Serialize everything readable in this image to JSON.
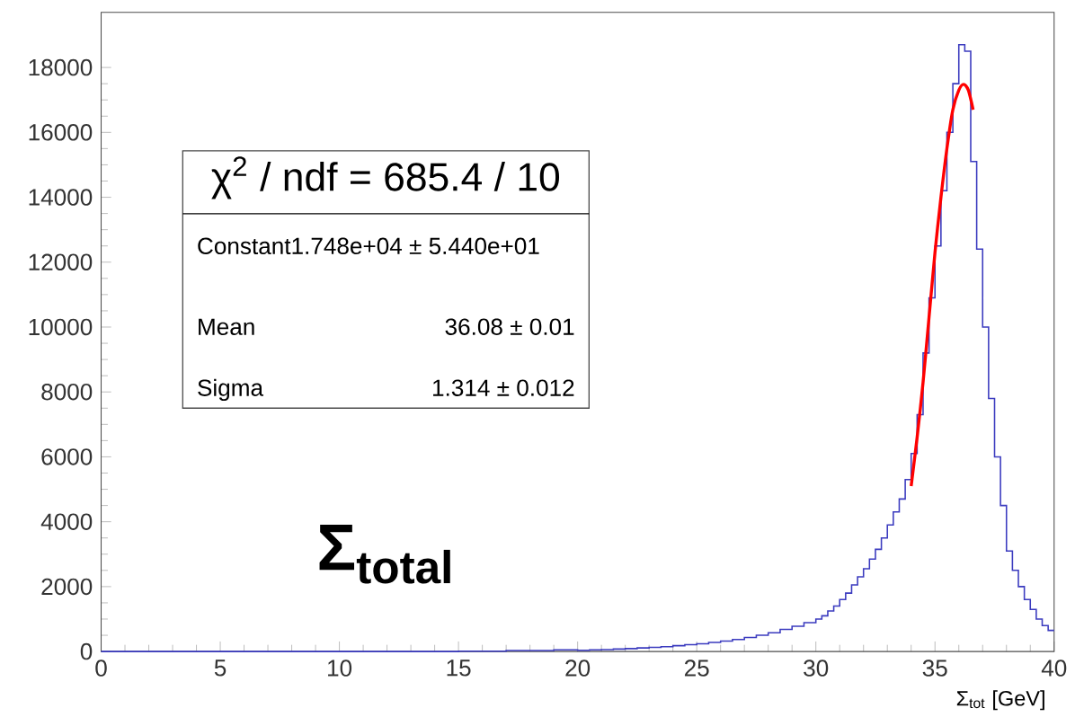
{
  "chart_data": {
    "type": "histogram",
    "xlabel": "Σ$_{tot}$ [GeV]",
    "color": "#3b3bbf",
    "bins": [
      0,
      15,
      17,
      19,
      20,
      20.5,
      21,
      21.5,
      22,
      22.5,
      23,
      23.5,
      24,
      24.5,
      25,
      25.5,
      26,
      26.5,
      27,
      27.5,
      28,
      28.5,
      29,
      29.5,
      30,
      30.25,
      30.5,
      30.75,
      31,
      31.25,
      31.5,
      31.75,
      32,
      32.25,
      32.5,
      32.75,
      33,
      33.25,
      33.5,
      33.75,
      34,
      34.25,
      34.5,
      34.75,
      35,
      35.25,
      35.5,
      35.75,
      36,
      36.25,
      36.5,
      36.75,
      37,
      37.25,
      37.5,
      37.75,
      38,
      38.25,
      38.5,
      38.75,
      39,
      39.25,
      39.5,
      39.75,
      40
    ],
    "values": [
      0,
      10,
      30,
      50,
      40,
      50,
      60,
      75,
      90,
      110,
      130,
      150,
      180,
      210,
      240,
      280,
      320,
      370,
      430,
      500,
      580,
      680,
      780,
      890,
      1000,
      1100,
      1250,
      1400,
      1600,
      1800,
      2050,
      2300,
      2550,
      2850,
      3150,
      3500,
      3900,
      4300,
      4700,
      5300,
      6100,
      7300,
      9200,
      10900,
      12500,
      14200,
      16000,
      17500,
      18700,
      18500,
      15100,
      12400,
      10000,
      7800,
      6000,
      4500,
      3100,
      2500,
      2000,
      1600,
      1300,
      1000,
      800,
      650
    ],
    "series": [
      {
        "type": "line",
        "color": "#ff0000",
        "x": [
          34,
          34.25,
          34.5,
          34.75,
          35,
          35.25,
          35.5,
          35.75,
          36,
          36.2,
          36.4,
          36.6
        ],
        "values": [
          5100,
          6600,
          8300,
          10300,
          12300,
          14000,
          15500,
          16700,
          17300,
          17480,
          17300,
          16700
        ]
      }
    ],
    "xlim": [
      0,
      40
    ],
    "ylim": [
      0,
      19700
    ],
    "xticks": [
      0,
      5,
      10,
      15,
      20,
      25,
      30,
      35,
      40
    ],
    "yticks": [
      0,
      2000,
      4000,
      6000,
      8000,
      10000,
      12000,
      14000,
      16000,
      18000
    ],
    "annotations": [
      "χ$^{2}$ / ndf = 685.4 / 10",
      "Constant",
      "1.748e+04 ± 5.440e+01",
      "Mean",
      "36.08 ± 0.01",
      "Sigma",
      "1.314 ± 0.012",
      "Σ$_{total}$"
    ]
  }
}
